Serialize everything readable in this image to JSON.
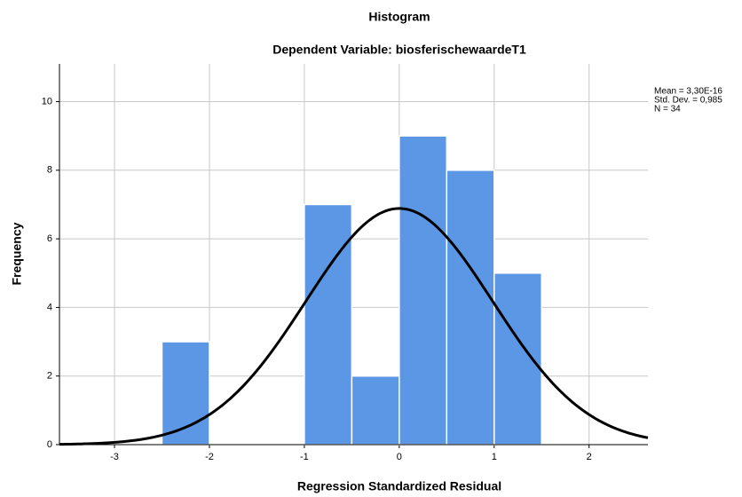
{
  "chart_data": {
    "type": "histogram",
    "title": "Histogram",
    "subtitle": "Dependent Variable: biosferischewaardeT1",
    "x_label": "Regression Standardized Residual",
    "y_label": "Frequency",
    "bins": [
      -2.5,
      -2,
      -1.5,
      -1,
      -0.5,
      0,
      0.5,
      1,
      1.5
    ],
    "values": [
      3,
      0,
      0,
      7,
      2,
      9,
      8,
      5
    ],
    "color": "#5b97e4",
    "xlim": [
      -3.58,
      2.62
    ],
    "ylim": [
      0,
      11.1
    ],
    "xticks": [
      -3,
      -2,
      -1,
      0,
      1,
      2
    ],
    "yticks": [
      0,
      2,
      4,
      6,
      8,
      10
    ],
    "grid": true,
    "stats": {
      "mean": {
        "value": 3.3e-16,
        "label": "Mean = 3,30E-16"
      },
      "sd": {
        "value": 0.985,
        "label": "Std. Dev. = 0,985"
      },
      "n": {
        "value": 34,
        "label": "N = 34"
      }
    }
  }
}
